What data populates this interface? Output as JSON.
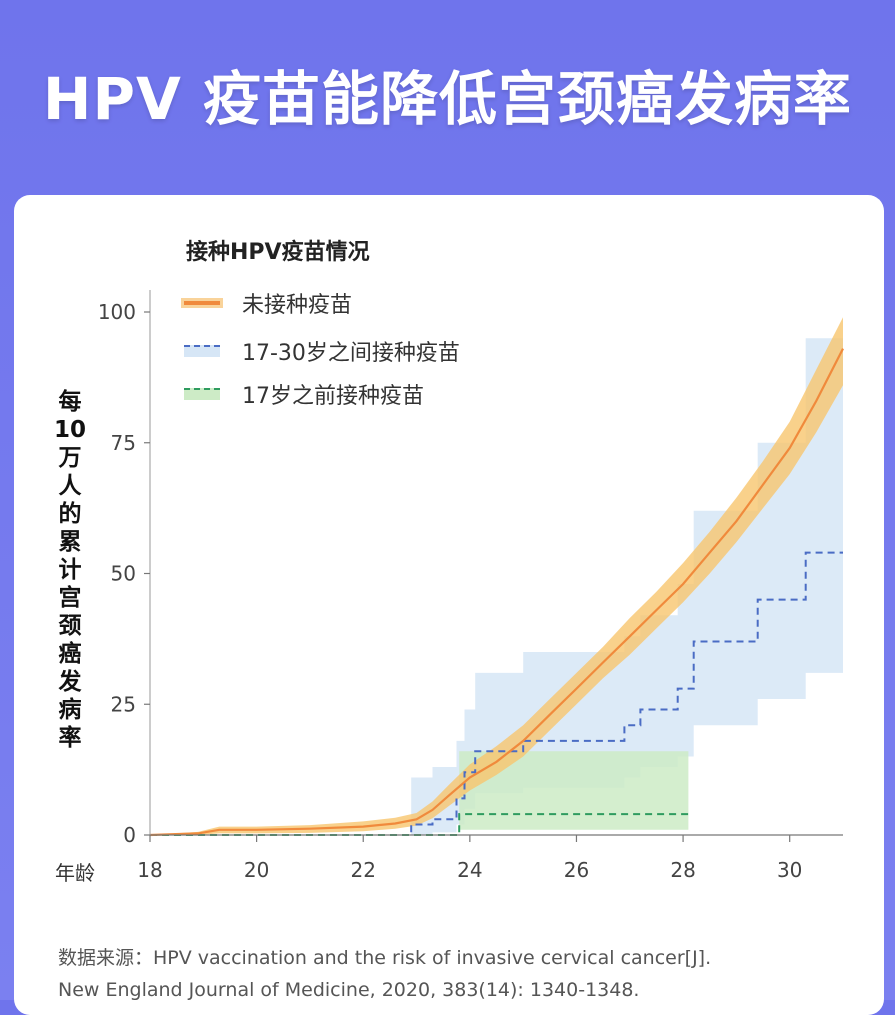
{
  "title": "HPV 疫苗能降低宫颈癌发病率",
  "legend": {
    "title": "接种HPV疫苗情况",
    "items": [
      {
        "label": "未接种疫苗",
        "color": "#f08a3c",
        "style": "solid"
      },
      {
        "label": "17-30岁之间接种疫苗",
        "color": "#4a6cc4",
        "style": "dashed"
      },
      {
        "label": "17岁之前接种疫苗",
        "color": "#2e9b5f",
        "style": "dashed"
      }
    ]
  },
  "y_axis_label": "每10万人的累计宫颈癌发病率",
  "x_axis_label": "年龄",
  "source": {
    "line1": "数据来源：HPV vaccination and the risk of invasive cervical cancer[J].",
    "line2": "New England Journal of Medicine, 2020, 383(14): 1340-1348."
  },
  "colors": {
    "background": "#7075ec",
    "unvaccinated": "#f08a3c",
    "unvaccinated_band": "#f7c56e",
    "vacc_17_30": "#4a6cc4",
    "vacc_17_30_band": "#d6e6f6",
    "vacc_before_17": "#2e9b5f",
    "vacc_before_17_band": "#cdebc6"
  },
  "chart_data": {
    "type": "line",
    "xlabel": "年龄",
    "ylabel": "每10万人的累计宫颈癌发病率",
    "xlim": [
      18,
      31
    ],
    "ylim": [
      0,
      100
    ],
    "xticks": [
      18,
      20,
      22,
      24,
      26,
      28,
      30
    ],
    "yticks": [
      0,
      25,
      50,
      75,
      100
    ],
    "grid": false,
    "legend_position": "top-left",
    "series": [
      {
        "name": "未接种疫苗",
        "style": "solid",
        "x": [
          18,
          18.9,
          19.3,
          20,
          21,
          22,
          22.6,
          23,
          23.3,
          23.6,
          24,
          24.5,
          25,
          25.5,
          26,
          26.5,
          27,
          27.5,
          28,
          28.5,
          29,
          29.5,
          30,
          30.5,
          31
        ],
        "y": [
          0,
          0.3,
          1,
          1,
          1.2,
          1.6,
          2.2,
          3,
          4.8,
          7.5,
          11,
          14,
          18,
          23,
          28,
          33,
          38,
          43,
          48,
          54,
          60,
          67,
          74,
          83,
          93
        ],
        "band_lower": [
          0,
          0,
          0.3,
          0.3,
          0.4,
          0.7,
          1.2,
          1.8,
          3.2,
          5.5,
          8.5,
          11.5,
          15,
          20,
          25,
          30,
          34.5,
          39.5,
          44.5,
          50,
          56,
          62.5,
          69,
          77,
          86
        ],
        "band_upper": [
          0,
          0.6,
          1.6,
          1.6,
          1.9,
          2.6,
          3.3,
          4.2,
          6.4,
          9.5,
          13.5,
          17,
          21,
          26,
          31,
          36,
          41.5,
          46.5,
          52,
          58,
          64.5,
          71.5,
          79,
          89,
          99
        ]
      },
      {
        "name": "17-30岁之间接种疫苗",
        "style": "step-dashed",
        "x": [
          18,
          22.9,
          23.3,
          23.75,
          23.9,
          24.1,
          24.4,
          25,
          26.2,
          26.9,
          27.2,
          27.5,
          27.9,
          28.2,
          29.4,
          29.9,
          30.3,
          31
        ],
        "y": [
          0,
          2,
          3,
          7,
          12,
          16,
          16,
          18,
          18,
          21,
          24,
          24,
          28,
          37,
          45,
          45,
          54,
          54
        ],
        "band_lower": [
          0,
          0,
          0.5,
          2,
          5,
          8,
          8,
          9,
          9,
          11,
          13,
          13,
          15,
          21,
          26,
          26,
          31,
          31
        ],
        "band_upper": [
          0,
          11,
          13,
          18,
          24,
          31,
          31,
          35,
          35,
          38,
          42,
          42,
          48,
          62,
          75,
          75,
          95,
          95
        ]
      },
      {
        "name": "17岁之前接种疫苗",
        "style": "step-dashed",
        "x": [
          18,
          23.6,
          23.8,
          28.1
        ],
        "y": [
          0,
          0,
          4,
          4
        ],
        "band_lower": [
          0,
          0,
          1,
          1
        ],
        "band_upper": [
          0,
          0,
          16,
          16
        ]
      }
    ]
  }
}
